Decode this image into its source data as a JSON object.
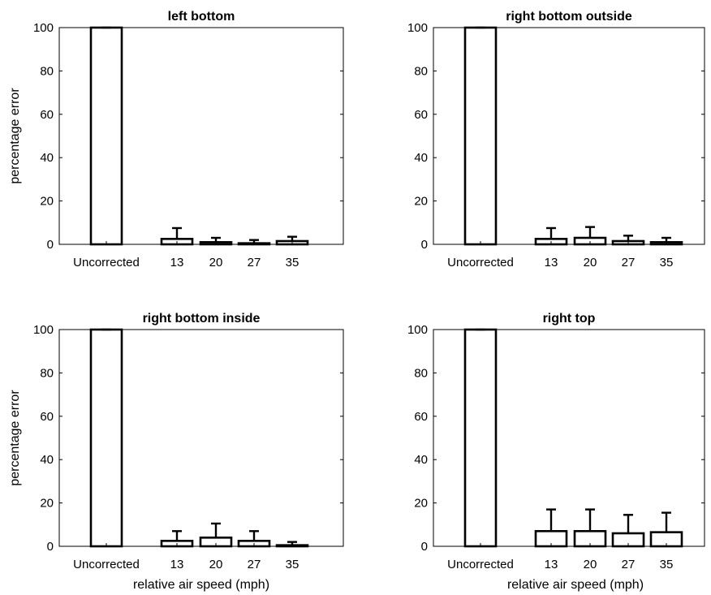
{
  "chart_data": [
    {
      "type": "bar",
      "title": "left bottom",
      "xlabel": "",
      "ylabel": "percentage error",
      "ylim": [
        0,
        100
      ],
      "yticks": [
        0,
        20,
        40,
        60,
        80,
        100
      ],
      "categories": [
        "Uncorrected",
        "13",
        "20",
        "27",
        "35"
      ],
      "values": [
        100,
        2.5,
        1.0,
        0.5,
        1.5
      ],
      "error_upper": [
        100,
        7.5,
        3.0,
        2.0,
        3.5
      ]
    },
    {
      "type": "bar",
      "title": "right bottom outside",
      "xlabel": "",
      "ylabel": "",
      "ylim": [
        0,
        100
      ],
      "yticks": [
        0,
        20,
        40,
        60,
        80,
        100
      ],
      "categories": [
        "Uncorrected",
        "13",
        "20",
        "27",
        "35"
      ],
      "values": [
        100,
        2.5,
        3.0,
        1.5,
        1.0
      ],
      "error_upper": [
        100,
        7.5,
        8.0,
        4.0,
        3.0
      ]
    },
    {
      "type": "bar",
      "title": "right bottom inside",
      "xlabel": "relative air speed (mph)",
      "ylabel": "percentage error",
      "ylim": [
        0,
        100
      ],
      "yticks": [
        0,
        20,
        40,
        60,
        80,
        100
      ],
      "categories": [
        "Uncorrected",
        "13",
        "20",
        "27",
        "35"
      ],
      "values": [
        100,
        2.5,
        4.0,
        2.5,
        0.5
      ],
      "error_upper": [
        100,
        7.0,
        10.5,
        7.0,
        2.0
      ]
    },
    {
      "type": "bar",
      "title": "right top",
      "xlabel": "relative air speed (mph)",
      "ylabel": "",
      "ylim": [
        0,
        100
      ],
      "yticks": [
        0,
        20,
        40,
        60,
        80,
        100
      ],
      "categories": [
        "Uncorrected",
        "13",
        "20",
        "27",
        "35"
      ],
      "values": [
        100,
        7.0,
        7.0,
        6.0,
        6.5
      ],
      "error_upper": [
        100,
        17.0,
        17.0,
        14.5,
        15.5
      ]
    }
  ]
}
